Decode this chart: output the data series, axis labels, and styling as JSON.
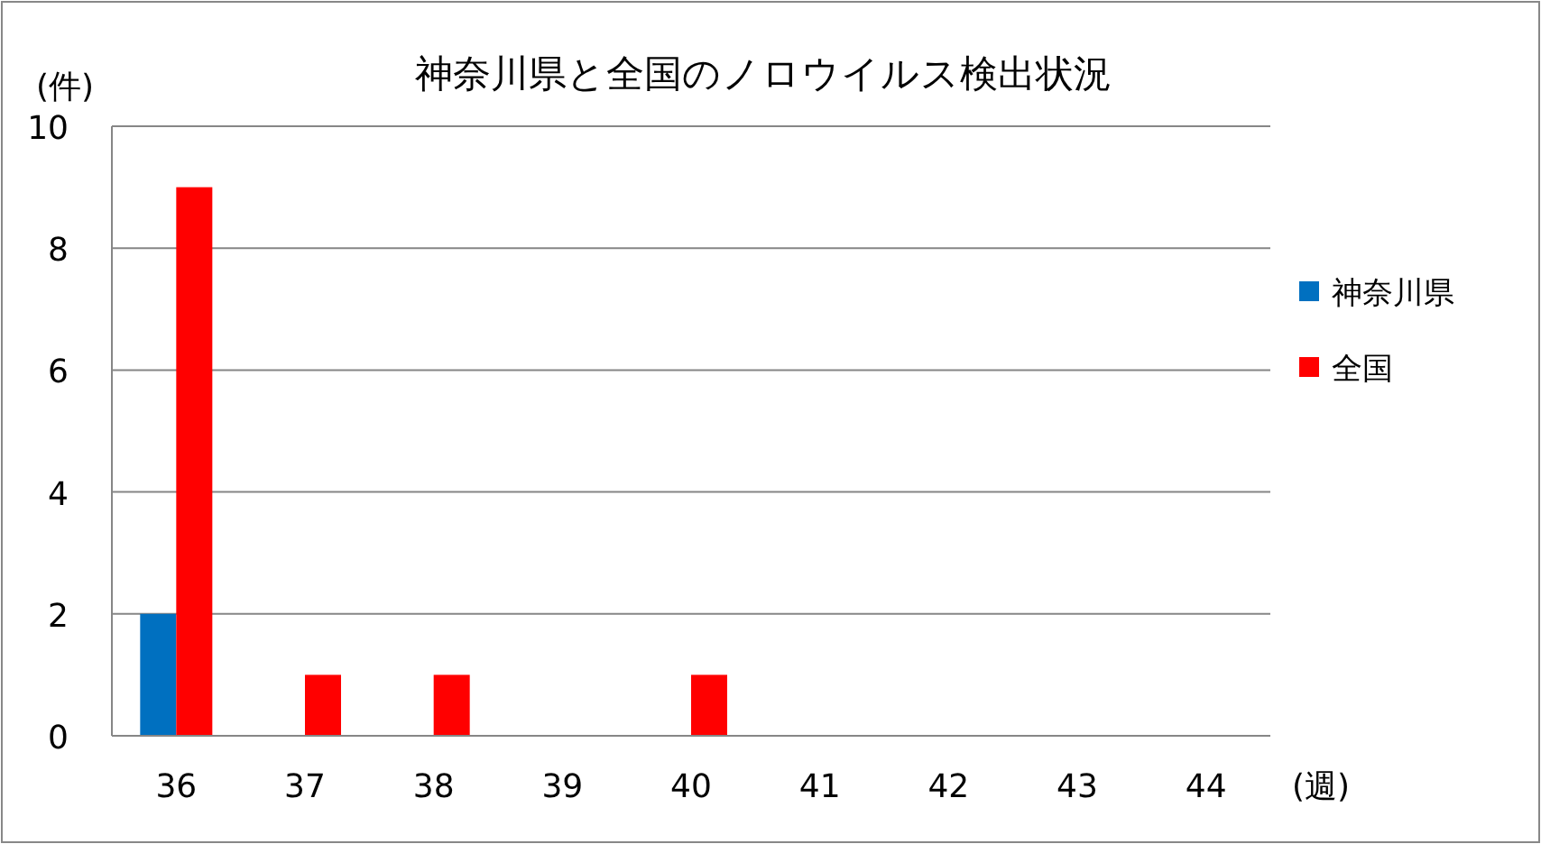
{
  "chart_data": {
    "type": "bar",
    "title": "神奈川県と全国のノロウイルス検出状況",
    "xlabel": "(週)",
    "ylabel": "(件)",
    "categories": [
      "36",
      "37",
      "38",
      "39",
      "40",
      "41",
      "42",
      "43",
      "44"
    ],
    "series": [
      {
        "name": "神奈川県",
        "color": "#0070c0",
        "values": [
          2,
          0,
          0,
          0,
          0,
          0,
          0,
          0,
          0
        ]
      },
      {
        "name": "全国",
        "color": "#ff0000",
        "values": [
          9,
          1,
          1,
          0,
          1,
          0,
          0,
          0,
          0
        ]
      }
    ],
    "ylim": [
      0,
      10
    ],
    "yticks": [
      0,
      2,
      4,
      6,
      8,
      10
    ],
    "grid": "y",
    "legend": "right"
  }
}
